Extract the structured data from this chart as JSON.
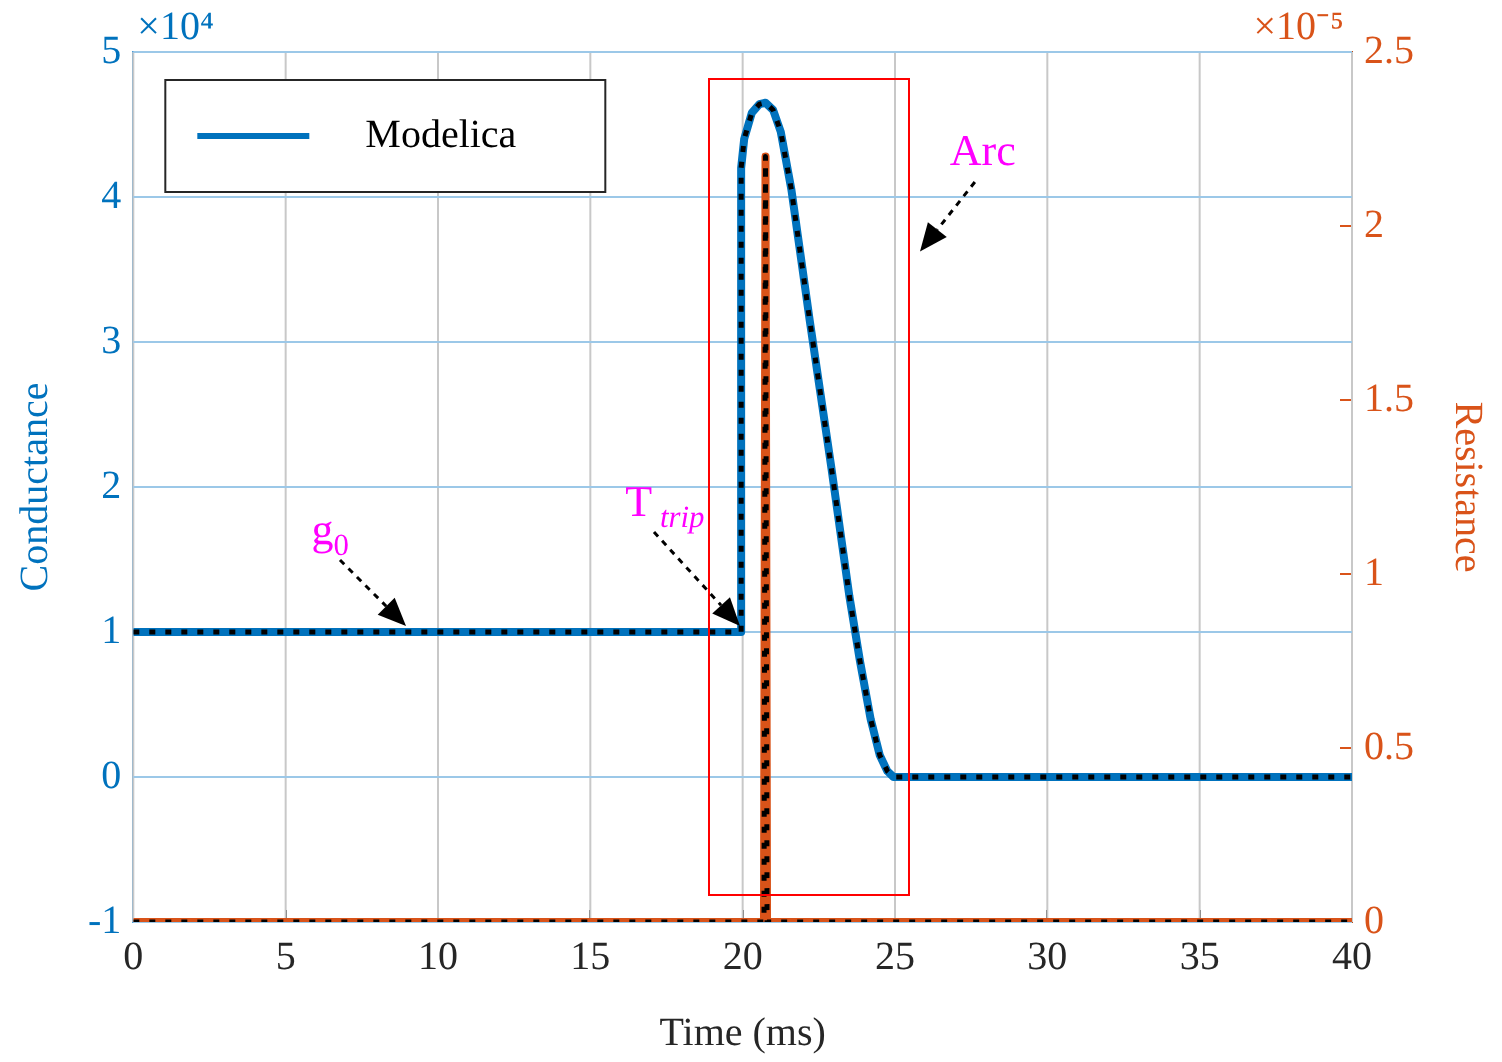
{
  "chart_data": {
    "type": "line",
    "xlabel": "Time (ms)",
    "ylabel": "Conductance",
    "y2label": "Resistance",
    "xlim": [
      0,
      40
    ],
    "xticks": [
      0,
      5,
      10,
      15,
      20,
      25,
      30,
      35,
      40
    ],
    "ylim": [
      -1,
      5
    ],
    "yticks": [
      -1,
      0,
      1,
      2,
      3,
      4,
      5
    ],
    "y2lim": [
      0,
      2.5
    ],
    "y2ticks": [
      0,
      0.5,
      1,
      1.5,
      2,
      2.5
    ],
    "series": [
      {
        "name": "Modelica",
        "color": "#0072bd",
        "line_style": "solid",
        "x": [
          0,
          19.95,
          19.95,
          20.05,
          20.3,
          20.55,
          20.75,
          21.0,
          21.25,
          21.6,
          21.9,
          22.2,
          22.55,
          22.9,
          23.2,
          23.5,
          23.85,
          24.2,
          24.5,
          24.75,
          24.95,
          40
        ],
        "values": [
          1,
          1,
          4.2,
          4.4,
          4.58,
          4.64,
          4.65,
          4.6,
          4.45,
          4.05,
          3.6,
          3.15,
          2.65,
          2.15,
          1.7,
          1.25,
          0.8,
          0.4,
          0.15,
          0.04,
          0,
          0
        ]
      },
      {
        "color": "#d95319",
        "axis": "y2",
        "x": [
          0,
          20.7,
          20.75,
          20.8,
          40
        ],
        "values": [
          0,
          0,
          2.2,
          0,
          0
        ]
      },
      {
        "color": "#000000",
        "line_style": "dotted",
        "x": [
          0,
          19.95,
          19.95,
          20.05,
          20.3,
          20.55,
          20.75,
          21.0,
          21.25,
          21.6,
          21.9,
          22.2,
          22.55,
          22.9,
          23.2,
          23.5,
          23.85,
          24.2,
          24.5,
          24.75,
          24.95,
          40
        ],
        "values": [
          1,
          1,
          4.2,
          4.4,
          4.58,
          4.64,
          4.65,
          4.6,
          4.45,
          4.05,
          3.6,
          3.15,
          2.65,
          2.15,
          1.7,
          1.25,
          0.8,
          0.4,
          0.15,
          0.04,
          0,
          0
        ]
      },
      {
        "color": "#000000",
        "line_style": "dotted",
        "axis": "y2",
        "x": [
          0,
          20.7,
          20.75,
          20.8,
          40
        ],
        "values": [
          0,
          0,
          2.2,
          0,
          0
        ]
      }
    ],
    "annotations": [
      "×10⁴",
      "×10⁻⁵",
      {
        "text": "g$_{0}$",
        "x": 9,
        "y": 1
      },
      {
        "text": "T$_{trip}$",
        "x": 19.95,
        "y": 1
      },
      "Arc"
    ],
    "grid": true,
    "legend": "top left",
    "marker": "none"
  }
}
